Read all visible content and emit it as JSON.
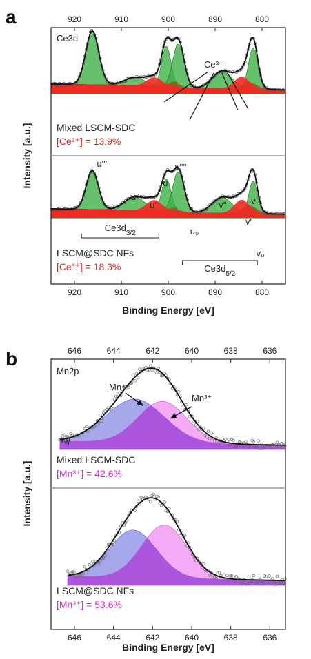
{
  "chart_data": [
    {
      "type": "line",
      "panel": "a",
      "region": "Ce3d",
      "xlabel": "Binding Energy [eV]",
      "ylabel": "Intensity [a.u.]",
      "xlim": [
        925,
        875
      ],
      "xticks": [
        920,
        910,
        900,
        890,
        880
      ],
      "annotation": "Ce³⁺",
      "subplots": [
        {
          "sample": "Mixed LSCM-SDC",
          "ratio_label": "[Ce³⁺] = 13.9%",
          "ratio_value": 13.9,
          "baseline": 0.07,
          "peaks_ce4": [
            {
              "center": 916.2,
              "height": 0.95,
              "width": 1.4
            },
            {
              "center": 907.2,
              "height": 0.14,
              "width": 2.2
            },
            {
              "center": 900.4,
              "height": 0.7,
              "width": 1.0
            },
            {
              "center": 897.8,
              "height": 0.77,
              "width": 1.2
            },
            {
              "center": 888.5,
              "height": 0.31,
              "width": 2.1
            },
            {
              "center": 881.9,
              "height": 0.73,
              "width": 1.0
            }
          ],
          "peaks_ce3": [
            {
              "center": 903.0,
              "height": 0.15,
              "width": 1.6
            },
            {
              "center": 884.3,
              "height": 0.22,
              "width": 1.6
            }
          ],
          "peaks_brown": [
            {
              "center": 898.6,
              "height": 0.08,
              "width": 1.3
            },
            {
              "center": 882.7,
              "height": 0.12,
              "width": 1.6
            }
          ]
        },
        {
          "sample": "LSCM@SDC NFs",
          "ratio_label": "[Ce³⁺] = 18.3%",
          "ratio_value": 18.3,
          "baseline": 0.07,
          "peaks_ce4": [
            {
              "center": 916.2,
              "height": 0.74,
              "width": 1.3
            },
            {
              "center": 907.2,
              "height": 0.25,
              "width": 2.2
            },
            {
              "center": 900.4,
              "height": 0.6,
              "width": 1.0
            },
            {
              "center": 897.8,
              "height": 0.77,
              "width": 1.2
            },
            {
              "center": 888.5,
              "height": 0.3,
              "width": 2.1
            },
            {
              "center": 881.9,
              "height": 0.62,
              "width": 0.9
            }
          ],
          "peaks_ce3": [
            {
              "center": 903.0,
              "height": 0.2,
              "width": 1.6
            },
            {
              "center": 884.3,
              "height": 0.26,
              "width": 1.6
            }
          ],
          "peaks_brown": [
            {
              "center": 898.6,
              "height": 0.06,
              "width": 1.3
            },
            {
              "center": 882.7,
              "height": 0.15,
              "width": 1.6
            }
          ],
          "peak_labels": [
            {
              "text": "u'''",
              "x": 914.5
            },
            {
              "text": "u''",
              "x": 907.2
            },
            {
              "text": "u",
              "x": 900.4
            },
            {
              "text": "u'",
              "x": 903.2
            },
            {
              "text": "v''''",
              "x": 897.8
            },
            {
              "text": "u₀",
              "x": 894.6
            },
            {
              "text": "v''",
              "x": 888.5
            },
            {
              "text": "v'",
              "x": 882.8
            },
            {
              "text": "v",
              "x": 881.6
            },
            {
              "text": "v₀",
              "x": 880.5
            }
          ],
          "brackets": [
            {
              "text": "Ce3d3/2",
              "from": 918.5,
              "to": 902.0
            },
            {
              "text": "Ce3d5/2",
              "from": 897.0,
              "to": 881.0
            }
          ]
        }
      ]
    },
    {
      "type": "line",
      "panel": "b",
      "region": "Mn2p",
      "xlabel": "Binding Energy [eV]",
      "ylabel": "Intensity [a.u.]",
      "xlim": [
        647.2,
        635.2
      ],
      "xticks": [
        646,
        644,
        642,
        640,
        638,
        636
      ],
      "annotations": [
        "Mn⁴⁺",
        "Mn³⁺"
      ],
      "subplots": [
        {
          "sample": "Mixed LSCM-SDC",
          "ratio_label": "[Mn³⁺] = 42.6%",
          "ratio_value": 42.6,
          "baseline": 0.05,
          "peak_mn4": {
            "center": 642.9,
            "height": 0.5,
            "width": 1.5
          },
          "peak_mn3": {
            "center": 641.5,
            "height": 0.48,
            "width": 1.25
          }
        },
        {
          "sample": "LSCM@SDC NFs",
          "ratio_label": "[Mn³⁺] = 53.6%",
          "ratio_value": 53.6,
          "baseline": 0.05,
          "peak_mn4": {
            "center": 643.0,
            "height": 0.5,
            "width": 1.2
          },
          "peak_mn3": {
            "center": 641.4,
            "height": 0.56,
            "width": 1.15
          }
        }
      ]
    }
  ],
  "colors": {
    "ce4": "#3bb043",
    "ce3": "#ee2a24",
    "brown": "#8b5a1e",
    "mn4": "#8a8ae6",
    "mn3": "#f08ef0",
    "mn_overlap": "#a24ad9",
    "red_text": "#e8211b",
    "magenta_text": "#e023d8",
    "divider": "#9e9e9e"
  }
}
